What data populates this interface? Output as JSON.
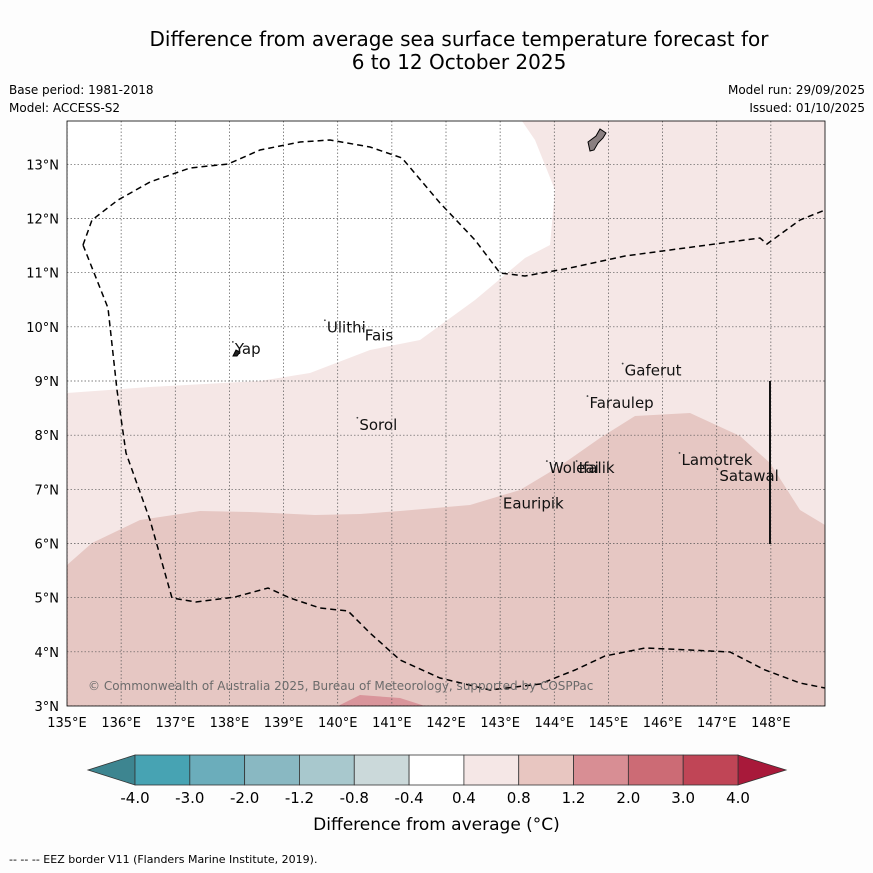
{
  "title_line1": "Difference from average sea surface temperature forecast for",
  "title_line2": "6 to 12 October 2025",
  "base_period": "Base period: 1981-2018",
  "model": "Model: ACCESS-S2",
  "model_run": "Model run: 29/09/2025",
  "issued": "Issued: 01/10/2025",
  "copyright": "© Commonwealth of Australia 2025, Bureau of Meteorology, supported by COSPPac",
  "colorbar_title": "Difference from average (°C)",
  "footnote": "--  --  -- EEZ border V11 (Flanders Marine Institute, 2019).",
  "lat_ticks": [
    "3°N",
    "4°N",
    "5°N",
    "6°N",
    "7°N",
    "8°N",
    "9°N",
    "10°N",
    "11°N",
    "12°N",
    "13°N"
  ],
  "lon_ticks": [
    "135°E",
    "136°E",
    "137°E",
    "138°E",
    "139°E",
    "140°E",
    "141°E",
    "142°E",
    "143°E",
    "144°E",
    "145°E",
    "146°E",
    "147°E",
    "148°E"
  ],
  "lat_values": [
    3,
    4,
    5,
    6,
    7,
    8,
    9,
    10,
    11,
    12,
    13
  ],
  "lon_values": [
    135,
    136,
    137,
    138,
    139,
    140,
    141,
    142,
    143,
    144,
    145,
    146,
    147,
    148
  ],
  "extent": {
    "lon_min": 135,
    "lon_max": 149,
    "lat_min": 3,
    "lat_max": 13.8
  },
  "colorbar_ticks": [
    "-4.0",
    "-3.0",
    "-2.0",
    "-1.2",
    "-0.8",
    "-0.4",
    "0.4",
    "0.8",
    "1.2",
    "2.0",
    "3.0",
    "4.0"
  ],
  "colorbar_colors": [
    "#47a3b3",
    "#6badbb",
    "#89b8c2",
    "#a8c8cd",
    "#cbd9da",
    "#ffffff",
    "#f5e7e6",
    "#e8c6c1",
    "#d88e94",
    "#cc6b75",
    "#c04556"
  ],
  "colorbar_low_color": "#3d8590",
  "colorbar_high_color": "#a8193a",
  "places": [
    {
      "name": "Ulithi",
      "lon": 139.8,
      "lat": 9.9
    },
    {
      "name": "Fais",
      "lon": 140.5,
      "lat": 9.75
    },
    {
      "name": "Yap",
      "lon": 138.1,
      "lat": 9.5
    },
    {
      "name": "Gaferut",
      "lon": 145.3,
      "lat": 9.1
    },
    {
      "name": "Faraulep",
      "lon": 144.65,
      "lat": 8.5
    },
    {
      "name": "Sorol",
      "lon": 140.4,
      "lat": 8.1
    },
    {
      "name": "Woleai",
      "lon": 143.9,
      "lat": 7.3
    },
    {
      "name": "Ifalik",
      "lon": 144.45,
      "lat": 7.3
    },
    {
      "name": "Lamotrek",
      "lon": 146.35,
      "lat": 7.45
    },
    {
      "name": "Satawal",
      "lon": 147.05,
      "lat": 7.15
    },
    {
      "name": "Eauripik",
      "lon": 143.05,
      "lat": 6.65
    }
  ]
}
